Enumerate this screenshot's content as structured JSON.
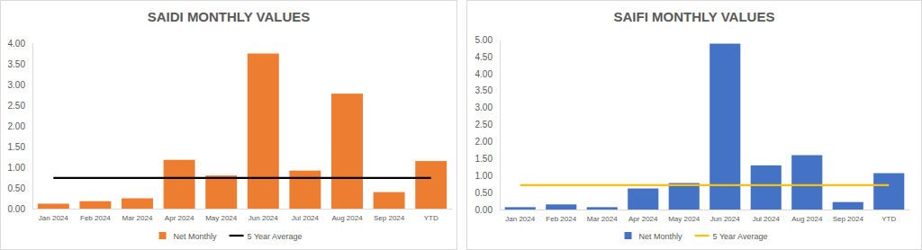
{
  "chart_data": [
    {
      "type": "bar",
      "title": "SAIDI MONTHLY VALUES",
      "categories": [
        "Jan 2024",
        "Feb 2024",
        "Mar 2024",
        "Apr 2024",
        "May 2024",
        "Jun 2024",
        "Jul 2024",
        "Aug 2024",
        "Sep 2024",
        "YTD"
      ],
      "series": [
        {
          "name": "Net Monthly",
          "type": "bar",
          "color": "#ed7d31",
          "values": [
            0.12,
            0.18,
            0.25,
            1.18,
            0.8,
            3.75,
            0.92,
            2.78,
            0.4,
            1.15
          ]
        },
        {
          "name": "5 Year Average",
          "type": "line",
          "color": "#000000",
          "values": [
            0.74,
            0.74,
            0.74,
            0.74,
            0.74,
            0.74,
            0.74,
            0.74,
            0.74,
            0.74
          ]
        }
      ],
      "ylim": [
        0,
        4
      ],
      "yticks": [
        {
          "value": 0,
          "label": "0.00"
        },
        {
          "value": 0.5,
          "label": "0.50"
        },
        {
          "value": 1,
          "label": "1.00"
        },
        {
          "value": 1.5,
          "label": "1.50"
        },
        {
          "value": 2,
          "label": "2.00"
        },
        {
          "value": 2.5,
          "label": "2.50"
        },
        {
          "value": 3,
          "label": "3.00"
        },
        {
          "value": 3.5,
          "label": "3.50"
        },
        {
          "value": 4,
          "label": "4.00"
        }
      ],
      "grid": false,
      "legend": "bottom"
    },
    {
      "type": "bar",
      "title": "SAIFI MONTHLY VALUES",
      "categories": [
        "Jan 2024",
        "Feb 2024",
        "Mar 2024",
        "Apr 2024",
        "May 2024",
        "Jun 2024",
        "Jul 2024",
        "Aug 2024",
        "Sep 2024",
        "YTD"
      ],
      "series": [
        {
          "name": "Net Monthly",
          "type": "bar",
          "color": "#4472c4",
          "values": [
            0.07,
            0.15,
            0.07,
            0.62,
            0.78,
            4.88,
            1.3,
            1.6,
            0.22,
            1.07
          ]
        },
        {
          "name": "5 Year Average",
          "type": "line",
          "color": "#ffc000",
          "values": [
            0.72,
            0.72,
            0.72,
            0.72,
            0.72,
            0.72,
            0.72,
            0.72,
            0.72,
            0.72
          ]
        }
      ],
      "ylim": [
        0,
        5
      ],
      "yticks": [
        {
          "value": 0,
          "label": "0.00"
        },
        {
          "value": 0.5,
          "label": "0.50"
        },
        {
          "value": 1,
          "label": "1.00"
        },
        {
          "value": 1.5,
          "label": "1.50"
        },
        {
          "value": 2,
          "label": "2.00"
        },
        {
          "value": 2.5,
          "label": "2.50"
        },
        {
          "value": 3,
          "label": "3.00"
        },
        {
          "value": 3.5,
          "label": "3.50"
        },
        {
          "value": 4,
          "label": "4.00"
        },
        {
          "value": 4.5,
          "label": "4.50"
        },
        {
          "value": 5,
          "label": "5.00"
        }
      ],
      "grid": false,
      "legend": "bottom"
    }
  ]
}
